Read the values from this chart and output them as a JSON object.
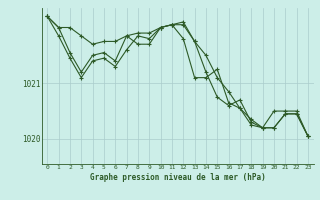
{
  "title": "Graphe pression niveau de la mer (hPa)",
  "background_color": "#cceee8",
  "grid_color": "#aacccc",
  "line_color": "#2d5a27",
  "xlim": [
    -0.5,
    23.5
  ],
  "ylim": [
    1019.55,
    1022.35
  ],
  "yticks": [
    1020,
    1021
  ],
  "xticks": [
    0,
    1,
    2,
    3,
    4,
    5,
    6,
    7,
    8,
    9,
    10,
    11,
    12,
    13,
    14,
    15,
    16,
    17,
    18,
    19,
    20,
    21,
    22,
    23
  ],
  "series1": [
    1022.2,
    1022.0,
    1022.0,
    1021.85,
    1021.7,
    1021.75,
    1021.75,
    1021.85,
    1021.9,
    1021.9,
    1022.0,
    1022.05,
    1022.05,
    1021.75,
    1021.5,
    1021.1,
    1020.85,
    1020.55,
    1020.35,
    1020.2,
    1020.2,
    1020.45,
    1020.45,
    1020.05
  ],
  "series2": [
    1022.2,
    1022.0,
    1021.55,
    1021.2,
    1021.5,
    1021.55,
    1021.4,
    1021.85,
    1021.7,
    1021.7,
    1022.0,
    1022.05,
    1022.1,
    1021.75,
    1021.2,
    1020.75,
    1020.6,
    1020.7,
    1020.3,
    1020.2,
    1020.5,
    1020.5,
    1020.5,
    1020.05
  ],
  "series3": [
    1022.2,
    1021.85,
    1021.45,
    1021.1,
    1021.4,
    1021.45,
    1021.3,
    1021.6,
    1021.85,
    1021.8,
    1022.0,
    1022.05,
    1021.8,
    1021.1,
    1021.1,
    1021.25,
    1020.65,
    1020.55,
    1020.25,
    1020.2,
    1020.2,
    1020.45,
    1020.45,
    1020.05
  ],
  "ylabel_1020_y": 1020,
  "ylabel_1021_y": 1021,
  "marker_size": 3,
  "linewidth": 0.8
}
